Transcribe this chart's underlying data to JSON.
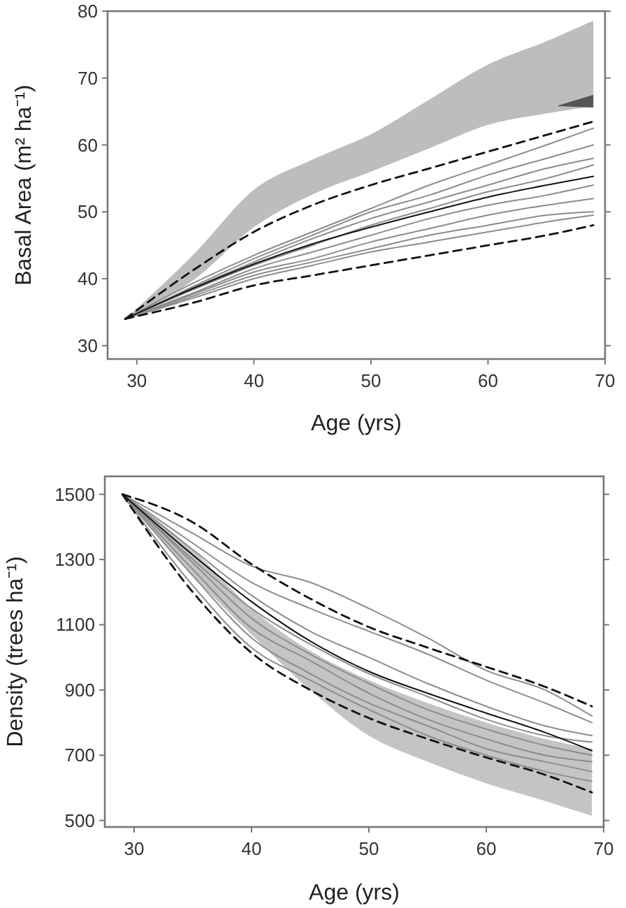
{
  "chart_data": [
    {
      "type": "line",
      "xlabel": "Age (yrs)",
      "ylabel": "Basal Area (m² ha⁻¹)",
      "xlim": [
        27.5,
        70
      ],
      "xticks": [
        30,
        40,
        50,
        60,
        70
      ],
      "ylim": [
        28,
        80
      ],
      "yticks": [
        30,
        40,
        50,
        60,
        70,
        80
      ],
      "line_style": "solid",
      "marker": "none",
      "x": [
        29,
        35,
        40,
        45,
        50,
        55,
        60,
        65,
        69
      ],
      "series": [
        {
          "color": "#bdbdbd",
          "values": [
            null,
            null,
            null,
            null,
            null,
            null,
            null,
            null,
            null
          ],
          "upper": [
            34,
            43.9,
            53.3,
            57.8,
            61.6,
            66.8,
            72,
            75.5,
            78.6
          ],
          "lower": [
            34,
            40,
            47.7,
            52.6,
            56,
            59.5,
            63,
            64.7,
            65.8
          ]
        },
        {
          "color": "#555555",
          "x": [
            66,
            69
          ],
          "values": [
            null,
            null
          ],
          "upper": [
            65.9,
            67.5
          ],
          "lower": [
            65.8,
            65.6
          ]
        },
        {
          "color": "#8c8c8c",
          "values": [
            34,
            39.5,
            43.5,
            47,
            50.5,
            54,
            57,
            60,
            62.5
          ]
        },
        {
          "color": "#8c8c8c",
          "values": [
            34,
            39,
            43,
            46.5,
            50,
            52.5,
            55.5,
            58,
            60
          ]
        },
        {
          "color": "#8c8c8c",
          "values": [
            34,
            38.8,
            42.5,
            46,
            49,
            51.5,
            54,
            56.5,
            58
          ]
        },
        {
          "color": "#8c8c8c",
          "values": [
            34,
            38.5,
            42,
            45,
            48,
            50.5,
            53,
            55,
            57
          ]
        },
        {
          "color": "#8c8c8c",
          "values": [
            34,
            38,
            41.5,
            44,
            46.5,
            49,
            51,
            52.5,
            54
          ]
        },
        {
          "color": "#8c8c8c",
          "values": [
            34,
            37.8,
            41,
            43,
            45.5,
            47.5,
            49.5,
            51,
            52
          ]
        },
        {
          "color": "#8c8c8c",
          "values": [
            34,
            37.5,
            40.5,
            42.5,
            44.5,
            46.5,
            48,
            49.5,
            50
          ]
        },
        {
          "color": "#8c8c8c",
          "values": [
            34,
            37.2,
            40,
            42,
            44,
            45.5,
            47,
            48.5,
            49.5
          ]
        },
        {
          "color": "#111111",
          "values": [
            34,
            38.7,
            42.2,
            45.2,
            47.7,
            50,
            52.2,
            54,
            55.3
          ]
        },
        {
          "color": "#111111",
          "line_style": "dashed",
          "values": [
            34,
            41.5,
            47,
            51,
            54,
            56.5,
            59,
            61.5,
            63.5
          ]
        },
        {
          "color": "#111111",
          "line_style": "dashed",
          "values": [
            34,
            36.5,
            39,
            40.5,
            42,
            43.5,
            45,
            46.5,
            48
          ]
        }
      ]
    },
    {
      "type": "line",
      "xlabel": "Age (yrs)",
      "ylabel": "Density (trees ha⁻¹)",
      "xlim": [
        27.5,
        70
      ],
      "xticks": [
        30,
        40,
        50,
        60,
        70
      ],
      "ylim": [
        480,
        1555
      ],
      "yticks": [
        500,
        700,
        900,
        1100,
        1300,
        1500
      ],
      "line_style": "solid",
      "marker": "none",
      "x": [
        29,
        35,
        40,
        45,
        50,
        55,
        60,
        65,
        69
      ],
      "series": [
        {
          "color": "#c4c4c4",
          "values": [
            null,
            null,
            null,
            null,
            null,
            null,
            null,
            null,
            null
          ],
          "upper": [
            1500,
            1330,
            1150,
            1020,
            930,
            860,
            800,
            750,
            720
          ],
          "lower": [
            1500,
            1250,
            1070,
            900,
            760,
            680,
            614,
            560,
            514
          ]
        },
        {
          "color": "#8c8c8c",
          "values": [
            1500,
            1380,
            1280,
            1230,
            1150,
            1060,
            960,
            900,
            820
          ]
        },
        {
          "color": "#8c8c8c",
          "values": [
            1500,
            1350,
            1230,
            1150,
            1080,
            1010,
            930,
            860,
            800
          ]
        },
        {
          "color": "#8c8c8c",
          "values": [
            1500,
            1330,
            1190,
            1080,
            1000,
            920,
            850,
            790,
            760
          ]
        },
        {
          "color": "#8c8c8c",
          "values": [
            1500,
            1300,
            1150,
            1040,
            950,
            880,
            810,
            760,
            740
          ]
        },
        {
          "color": "#8c8c8c",
          "values": [
            1500,
            1290,
            1120,
            1010,
            920,
            840,
            780,
            730,
            700
          ]
        },
        {
          "color": "#8c8c8c",
          "values": [
            1500,
            1270,
            1090,
            990,
            890,
            810,
            750,
            700,
            680
          ]
        },
        {
          "color": "#8c8c8c",
          "values": [
            1500,
            1250,
            1060,
            950,
            860,
            790,
            720,
            680,
            650
          ]
        },
        {
          "color": "#8c8c8c",
          "values": [
            1500,
            1220,
            1030,
            930,
            840,
            760,
            700,
            650,
            620
          ]
        },
        {
          "color": "#111111",
          "values": [
            1500,
            1314,
            1171,
            1050,
            957,
            890,
            829,
            770,
            714
          ]
        },
        {
          "color": "#111111",
          "line_style": "dashed",
          "values": [
            1500,
            1414,
            1286,
            1180,
            1093,
            1030,
            971,
            910,
            850
          ]
        },
        {
          "color": "#111111",
          "line_style": "dashed",
          "values": [
            1500,
            1200,
            1014,
            900,
            814,
            750,
            693,
            640,
            586
          ]
        }
      ]
    }
  ]
}
